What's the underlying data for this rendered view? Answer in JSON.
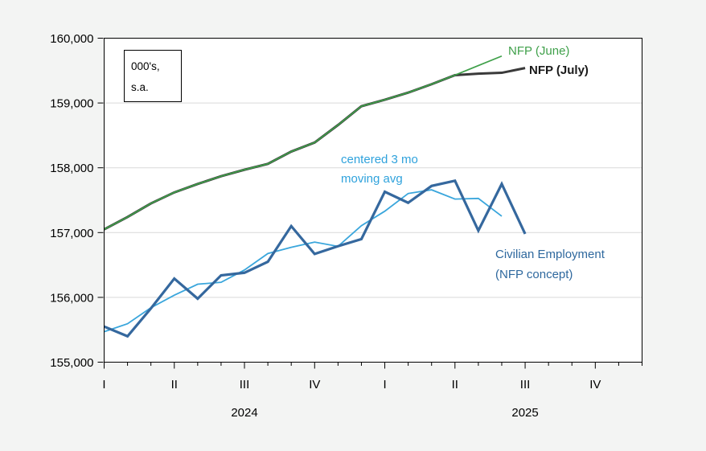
{
  "figure": {
    "background": "#f3f4f3",
    "plot_background": "#ffffff",
    "grid_color": "#d9d9d9",
    "axis_color": "#000000"
  },
  "unit_note": {
    "line1": "000's,",
    "line2": "s.a."
  },
  "labels": {
    "nfp_june": {
      "text": "NFP (June)",
      "color": "#3fa04a"
    },
    "nfp_july": {
      "text": "NFP (July)",
      "color": "#1a1a1a"
    },
    "mavg": {
      "line1": "centered 3 mo",
      "line2": "moving avg",
      "color": "#2fa2dc"
    },
    "civilian": {
      "line1": "Civilian Employment",
      "line2": "(NFP concept)",
      "color": "#2e689e"
    }
  },
  "chart_data": {
    "type": "line",
    "title": "",
    "units_note": "000's, s.a.",
    "x_months": [
      "2024-01",
      "2024-02",
      "2024-03",
      "2024-04",
      "2024-05",
      "2024-06",
      "2024-07",
      "2024-08",
      "2024-09",
      "2024-10",
      "2024-11",
      "2024-12",
      "2025-01",
      "2025-02",
      "2025-03",
      "2025-04",
      "2025-05",
      "2025-06",
      "2025-07"
    ],
    "x_axis_range_months": [
      "2024-01",
      "2025-12"
    ],
    "series": [
      {
        "name": "NFP (July)",
        "color": "#3a3a3a",
        "width": 3,
        "values": [
          157050,
          157240,
          157450,
          157620,
          157750,
          157870,
          157970,
          158060,
          158250,
          158390,
          158660,
          158950,
          159050,
          159160,
          159290,
          159430,
          159452,
          159466,
          159539
        ]
      },
      {
        "name": "NFP (June)",
        "color": "#3fa04a",
        "width": 1.7,
        "values": [
          157050,
          157240,
          157450,
          157620,
          157750,
          157870,
          157970,
          158060,
          158250,
          158390,
          158660,
          158950,
          159050,
          159160,
          159290,
          159430,
          159577,
          159724,
          null
        ]
      },
      {
        "name": "centered 3 mo moving avg",
        "color": "#3aa6dc",
        "width": 1.8,
        "values": [
          155470,
          155593,
          155840,
          156033,
          156203,
          156233,
          156423,
          156677,
          156773,
          156853,
          156787,
          157107,
          157330,
          157603,
          157660,
          157517,
          157527,
          157253,
          null
        ]
      },
      {
        "name": "Civilian Employment (NFP concept)",
        "color": "#35689e",
        "width": 3.2,
        "values": [
          155550,
          155400,
          155830,
          156290,
          155980,
          156340,
          156380,
          156550,
          157100,
          156670,
          156790,
          156900,
          157630,
          157460,
          157720,
          157800,
          157030,
          157750,
          156980
        ]
      }
    ],
    "ylim": [
      155000,
      160000
    ],
    "y_ticks": [
      "155,000",
      "156,000",
      "157,000",
      "158,000",
      "159,000",
      "160,000"
    ],
    "x_quarter_labels": [
      "I",
      "II",
      "III",
      "IV",
      "I",
      "II",
      "III",
      "IV"
    ],
    "year_labels": [
      "2024",
      "2025"
    ],
    "grid": "horizontal",
    "legend_position": "inline-annotations"
  }
}
